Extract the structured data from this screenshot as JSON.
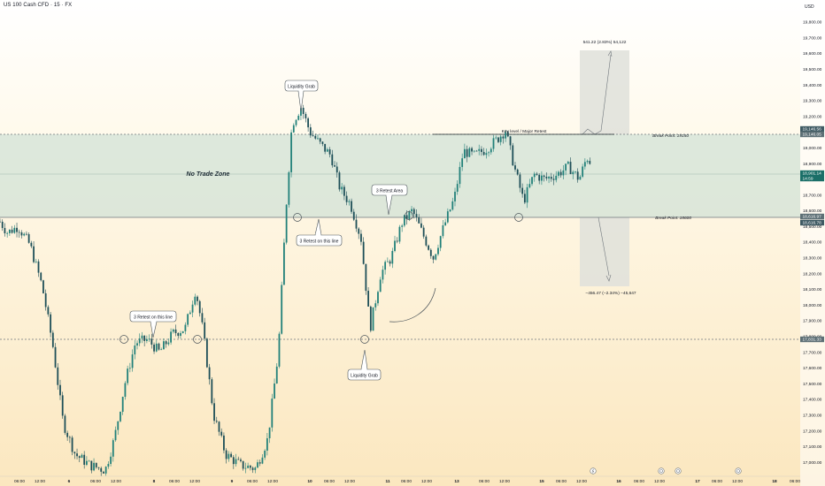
{
  "header": {
    "symbol": "US 100 Cash CFD · 15 · FX",
    "currency": "USD"
  },
  "price_tags": [
    {
      "value": "19,146.56",
      "bg": "#3f5a63"
    },
    {
      "value": "19,146.05",
      "bg": "#5d6f75"
    },
    {
      "value": "18,901.14",
      "bg": "#1b6f68"
    },
    {
      "value": "14:59",
      "bg": "#1b6f68"
    },
    {
      "value": "18,616.97",
      "bg": "#5d6f75"
    },
    {
      "value": "18,616.78",
      "bg": "#3f5a63"
    },
    {
      "value": "17,831.33",
      "bg": "#5d6f75"
    }
  ],
  "annotations": {
    "no_trade_zone": "No Trade Zone",
    "key_level": "Key level / Major Retest",
    "break_point_high": "Break Point: 19150",
    "break_point_low": "Break Point: 18600",
    "liquidity_grab_top": "Liquidity Grab",
    "liquidity_grab_bottom": "Liquidity Grab",
    "retest_line_right": "3 Retest on this line",
    "retest_line_left": "3 Retest on this line",
    "retest_area": "3 Retest Area",
    "upper_projection": "541.22 (2.83%) 54,122",
    "lower_projection": "−456.47 (−2.34%) −45,647"
  },
  "colors": {
    "bull": "#22817a",
    "bear": "#1e4f58",
    "zone_fill": "#cfe1d6",
    "projection_box": "#dfe0da",
    "dashed_line": "#6f767c",
    "axis_text": "#131722"
  },
  "chart_data": {
    "type": "candlestick",
    "title": "US 100 Cash CFD · 15 · FX",
    "y_unit": "USD",
    "ylim": [
      17000,
      19900
    ],
    "yticks": [
      "19,900.00",
      "19,800.00",
      "19,700.00",
      "19,600.00",
      "19,500.00",
      "19,400.00",
      "19,300.00",
      "19,200.00",
      "19,100.00",
      "19,000.00",
      "18,900.00",
      "18,800.00",
      "18,700.00",
      "18,600.00",
      "18,500.00",
      "18,400.00",
      "18,300.00",
      "18,200.00",
      "18,100.00",
      "18,000.00",
      "17,900.00",
      "17,800.00",
      "17,700.00",
      "17,600.00",
      "17,500.00",
      "17,400.00",
      "17,300.00",
      "17,200.00",
      "17,100.00",
      "17,000.00"
    ],
    "xticks": [
      "06:00",
      "12:00",
      "6",
      "06:00",
      "12:00",
      "8",
      "06:00",
      "12:00",
      "9",
      "06:00",
      "12:00",
      "10",
      "06:00",
      "12:00",
      "11",
      "06:00",
      "12:00",
      "13",
      "06:00",
      "12:00",
      "15",
      "06:00",
      "12:00",
      "16",
      "06:00",
      "12:00",
      "17",
      "06:00",
      "12:00",
      "18",
      "06:00"
    ],
    "levels": [
      {
        "name": "Break Point: 19150",
        "value": 19146.05
      },
      {
        "name": "Break Point: 18600",
        "value": 18616.97
      },
      {
        "name": "Horizontal line",
        "value": 17831.33
      }
    ],
    "last_price": 18901.14,
    "price_path": [
      {
        "x": 0,
        "y": 18530
      },
      {
        "x": 0.5,
        "y": 18460
      },
      {
        "x": 1.2,
        "y": 18500
      },
      {
        "x": 2.0,
        "y": 18380
      },
      {
        "x": 2.8,
        "y": 18120
      },
      {
        "x": 3.5,
        "y": 17750
      },
      {
        "x": 4.2,
        "y": 17250
      },
      {
        "x": 5.0,
        "y": 17050
      },
      {
        "x": 6.0,
        "y": 16980
      },
      {
        "x": 7.0,
        "y": 16950
      },
      {
        "x": 7.6,
        "y": 17150
      },
      {
        "x": 8.3,
        "y": 17500
      },
      {
        "x": 9.0,
        "y": 17760
      },
      {
        "x": 9.8,
        "y": 17780
      },
      {
        "x": 10.6,
        "y": 17700
      },
      {
        "x": 11.5,
        "y": 17820
      },
      {
        "x": 12.3,
        "y": 17850
      },
      {
        "x": 13.0,
        "y": 18100
      },
      {
        "x": 13.5,
        "y": 17830
      },
      {
        "x": 14.2,
        "y": 17300
      },
      {
        "x": 15.0,
        "y": 17050
      },
      {
        "x": 16.0,
        "y": 16980
      },
      {
        "x": 17.0,
        "y": 16960
      },
      {
        "x": 17.8,
        "y": 17150
      },
      {
        "x": 18.5,
        "y": 17700
      },
      {
        "x": 19.0,
        "y": 18600
      },
      {
        "x": 19.4,
        "y": 19150
      },
      {
        "x": 20.0,
        "y": 19260
      },
      {
        "x": 20.6,
        "y": 19100
      },
      {
        "x": 21.3,
        "y": 19020
      },
      {
        "x": 22.0,
        "y": 18950
      },
      {
        "x": 22.6,
        "y": 18740
      },
      {
        "x": 23.3,
        "y": 18640
      },
      {
        "x": 24.0,
        "y": 18420
      },
      {
        "x": 24.6,
        "y": 17850
      },
      {
        "x": 25.3,
        "y": 18200
      },
      {
        "x": 26.0,
        "y": 18300
      },
      {
        "x": 26.7,
        "y": 18520
      },
      {
        "x": 27.4,
        "y": 18600
      },
      {
        "x": 28.1,
        "y": 18450
      },
      {
        "x": 28.8,
        "y": 18300
      },
      {
        "x": 29.5,
        "y": 18500
      },
      {
        "x": 30.2,
        "y": 18680
      },
      {
        "x": 30.8,
        "y": 18980
      },
      {
        "x": 31.5,
        "y": 18950
      },
      {
        "x": 32.3,
        "y": 18990
      },
      {
        "x": 33.0,
        "y": 19050
      },
      {
        "x": 33.6,
        "y": 19110
      },
      {
        "x": 34.2,
        "y": 18870
      },
      {
        "x": 34.8,
        "y": 18660
      },
      {
        "x": 35.5,
        "y": 18830
      },
      {
        "x": 36.2,
        "y": 18800
      },
      {
        "x": 37.0,
        "y": 18830
      },
      {
        "x": 37.8,
        "y": 18880
      },
      {
        "x": 38.5,
        "y": 18800
      },
      {
        "x": 39.0,
        "y": 18940
      },
      {
        "x": 39.3,
        "y": 18901
      }
    ]
  }
}
